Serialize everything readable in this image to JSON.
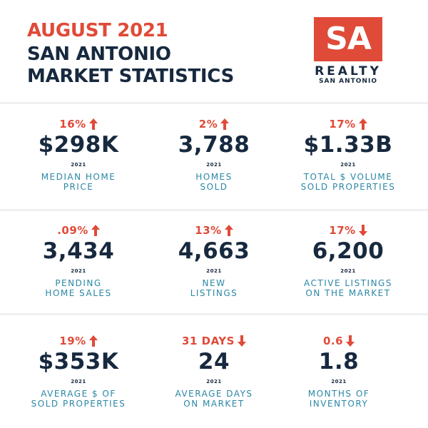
{
  "header": {
    "line1": "AUGUST 2021",
    "line2": "SAN ANTONIO",
    "line3": "MARKET STATISTICS"
  },
  "logo": {
    "mark": "SA",
    "name": "REALTY",
    "city": "SAN ANTONIO"
  },
  "colors": {
    "accent": "#e04a38",
    "navy": "#17293f",
    "teal": "#2a87a6"
  },
  "stats": [
    {
      "change": "16%",
      "direction": "up",
      "value": "$298K",
      "year": "2021",
      "label1": "MEDIAN HOME",
      "label2": "PRICE"
    },
    {
      "change": "2%",
      "direction": "up",
      "value": "3,788",
      "year": "2021",
      "label1": "HOMES",
      "label2": "SOLD"
    },
    {
      "change": "17%",
      "direction": "up",
      "value": "$1.33B",
      "year": "2021",
      "label1": "TOTAL $ VOLUME",
      "label2": "SOLD PROPERTIES"
    },
    {
      "change": ".09%",
      "direction": "up",
      "value": "3,434",
      "year": "2021",
      "label1": "PENDING",
      "label2": "HOME SALES"
    },
    {
      "change": "13%",
      "direction": "up",
      "value": "4,663",
      "year": "2021",
      "label1": "NEW",
      "label2": "LISTINGS"
    },
    {
      "change": "17%",
      "direction": "down",
      "value": "6,200",
      "year": "2021",
      "label1": "ACTIVE LISTINGS",
      "label2": "ON THE MARKET"
    },
    {
      "change": "19%",
      "direction": "up",
      "value": "$353K",
      "year": "2021",
      "label1": "AVERAGE $ OF",
      "label2": "SOLD PROPERTIES"
    },
    {
      "change": "31 DAYS",
      "direction": "down",
      "value": "24",
      "year": "2021",
      "label1": "AVERAGE DAYS",
      "label2": "ON MARKET"
    },
    {
      "change": "0.6",
      "direction": "down",
      "value": "1.8",
      "year": "2021",
      "label1": "MONTHS OF",
      "label2": "INVENTORY"
    }
  ]
}
